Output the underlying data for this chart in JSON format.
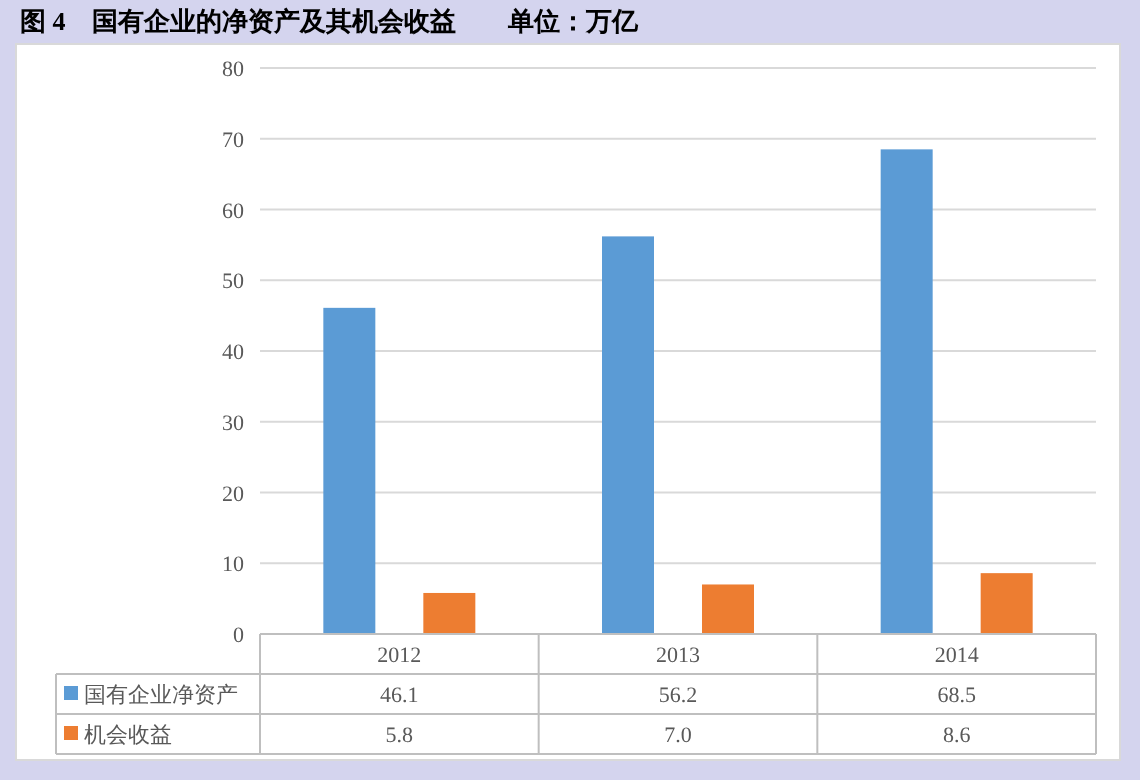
{
  "chart_data": {
    "type": "bar",
    "title": "图 4　国有企业的净资产及其机会收益　　单位：万亿",
    "categories": [
      "2012",
      "2013",
      "2014"
    ],
    "series": [
      {
        "name": "国有企业净资产",
        "color": "#5b9bd5",
        "values": [
          46.1,
          56.2,
          68.5
        ],
        "value_labels": [
          "46.1",
          "56.2",
          "68.5"
        ]
      },
      {
        "name": "机会收益",
        "color": "#ed7d31",
        "values": [
          5.8,
          7.0,
          8.6
        ],
        "value_labels": [
          "5.8",
          "7.0",
          "8.6"
        ]
      }
    ],
    "ylim": [
      0,
      80
    ],
    "yticks": [
      0,
      10,
      20,
      30,
      40,
      50,
      60,
      70,
      80
    ],
    "grid": "y",
    "legend": "bottom"
  }
}
